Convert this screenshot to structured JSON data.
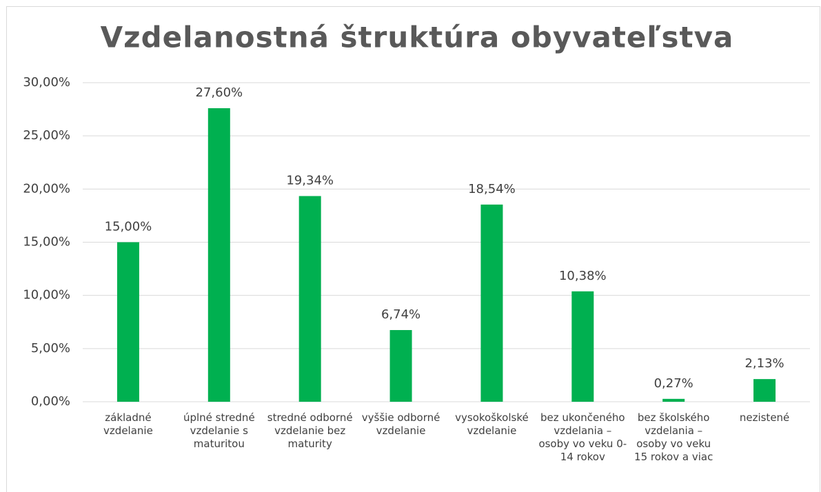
{
  "chart_data": {
    "type": "bar",
    "title": "Vzdelanostná štruktúra obyvateľstva",
    "categories": [
      "základné vzdelanie",
      "úplné stredné vzdelanie s maturitou",
      "stredné odborné vzdelanie bez maturity",
      "vyššie odborné vzdelanie",
      "vysokoškolské vzdelanie",
      "bez ukončeného vzdelania – osoby vo veku 0-14 rokov",
      "bez školského vzdelania – osoby vo veku 15 rokov a viac",
      "nezistené"
    ],
    "values": [
      15.0,
      27.6,
      19.34,
      6.74,
      18.54,
      10.38,
      0.27,
      2.13
    ],
    "value_labels": [
      "15,00%",
      "27,60%",
      "19,34%",
      "6,74%",
      "18,54%",
      "10,38%",
      "0,27%",
      "2,13%"
    ],
    "color": "#00b050",
    "ylim": [
      0,
      30
    ],
    "yticks": [
      {
        "value": 0,
        "label": "0,00%"
      },
      {
        "value": 5,
        "label": "5,00%"
      },
      {
        "value": 10,
        "label": "10,00%"
      },
      {
        "value": 15,
        "label": "15,00%"
      },
      {
        "value": 20,
        "label": "20,00%"
      },
      {
        "value": 25,
        "label": "25,00%"
      },
      {
        "value": 30,
        "label": "30,00%"
      }
    ],
    "grid": true
  }
}
